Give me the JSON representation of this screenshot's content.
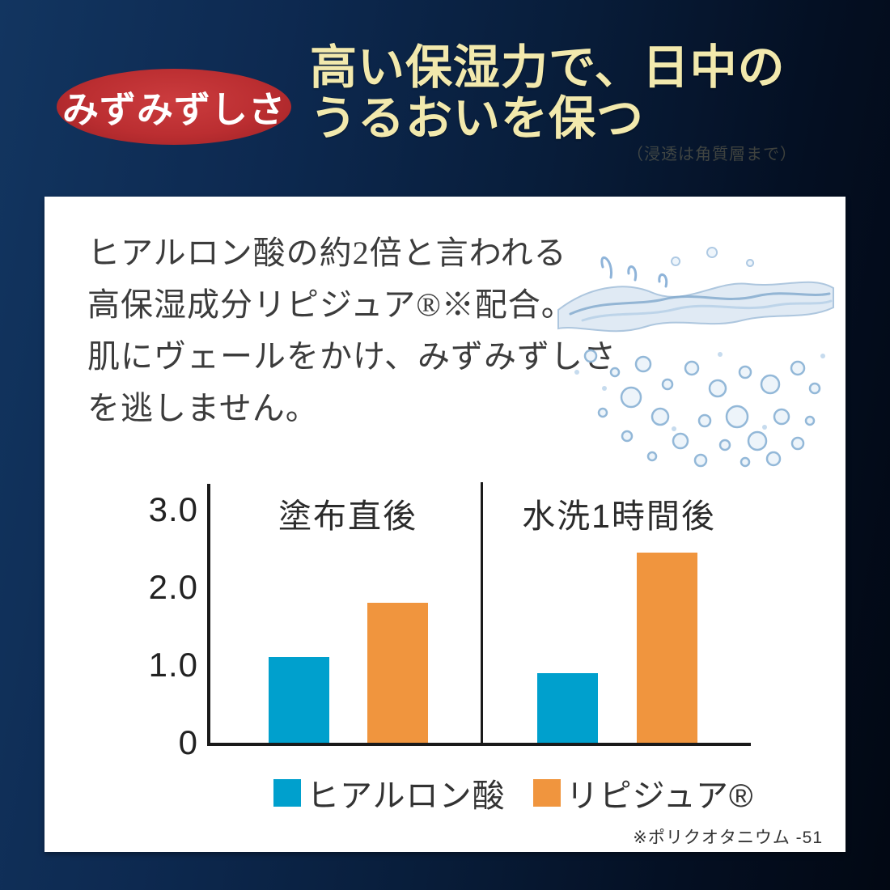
{
  "badge": {
    "label": "みずみずしさ"
  },
  "header": {
    "title_line1": "高い保湿力で、日中の",
    "title_line2": "うるおいを保つ",
    "subnote": "（浸透は角質層まで）"
  },
  "card": {
    "body_lines": [
      "ヒアルロン酸の約2倍と言われる",
      "高保湿成分リピジュア®※配合。",
      "肌にヴェールをかけ、みずみずしさ",
      "を逃しません。"
    ],
    "footnote": "※ポリクオタニウム -51"
  },
  "chart_data": {
    "type": "bar",
    "groups": [
      "塗布直後",
      "水洗1時間後"
    ],
    "series": [
      {
        "name": "ヒアルロン酸",
        "color": "#00a0cd",
        "values": [
          1.1,
          0.9
        ]
      },
      {
        "name": "リピジュア®",
        "color": "#f0953e",
        "values": [
          1.8,
          2.45
        ]
      }
    ],
    "ytick_labels": [
      "0",
      "1.0",
      "2.0",
      "3.0"
    ],
    "ylim": [
      0,
      3.3
    ],
    "xlabel": "",
    "ylabel": "",
    "grid": false,
    "legend_position": "bottom"
  },
  "colors": {
    "background_navy": "#0d2950",
    "badge_red": "#bb2e31",
    "title_gold": "#f2e9ad",
    "bar_blue": "#00a0cd",
    "bar_orange": "#f0953e",
    "axis_black": "#1a1a1a",
    "body_text": "#3c3c3c"
  }
}
